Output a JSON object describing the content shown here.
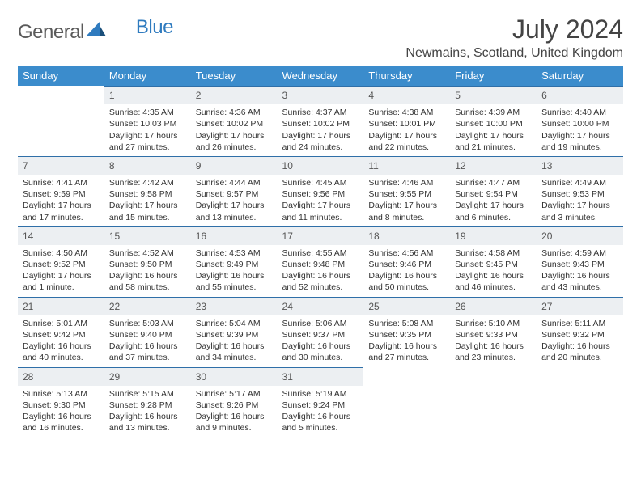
{
  "logo": {
    "part1": "General",
    "part2": "Blue"
  },
  "title": "July 2024",
  "subtitle": "Newmains, Scotland, United Kingdom",
  "colors": {
    "header_bg": "#3b8ccc",
    "header_text": "#ffffff",
    "daynum_bg": "#eceff2",
    "daynum_border": "#2f6fa8",
    "body_text": "#333333",
    "logo_gray": "#5a5a5a",
    "logo_blue": "#2f7bbf"
  },
  "weekdays": [
    "Sunday",
    "Monday",
    "Tuesday",
    "Wednesday",
    "Thursday",
    "Friday",
    "Saturday"
  ],
  "weeks": [
    [
      {
        "n": "",
        "lines": [],
        "empty": true
      },
      {
        "n": "1",
        "lines": [
          "Sunrise: 4:35 AM",
          "Sunset: 10:03 PM",
          "Daylight: 17 hours",
          "and 27 minutes."
        ]
      },
      {
        "n": "2",
        "lines": [
          "Sunrise: 4:36 AM",
          "Sunset: 10:02 PM",
          "Daylight: 17 hours",
          "and 26 minutes."
        ]
      },
      {
        "n": "3",
        "lines": [
          "Sunrise: 4:37 AM",
          "Sunset: 10:02 PM",
          "Daylight: 17 hours",
          "and 24 minutes."
        ]
      },
      {
        "n": "4",
        "lines": [
          "Sunrise: 4:38 AM",
          "Sunset: 10:01 PM",
          "Daylight: 17 hours",
          "and 22 minutes."
        ]
      },
      {
        "n": "5",
        "lines": [
          "Sunrise: 4:39 AM",
          "Sunset: 10:00 PM",
          "Daylight: 17 hours",
          "and 21 minutes."
        ]
      },
      {
        "n": "6",
        "lines": [
          "Sunrise: 4:40 AM",
          "Sunset: 10:00 PM",
          "Daylight: 17 hours",
          "and 19 minutes."
        ]
      }
    ],
    [
      {
        "n": "7",
        "lines": [
          "Sunrise: 4:41 AM",
          "Sunset: 9:59 PM",
          "Daylight: 17 hours",
          "and 17 minutes."
        ]
      },
      {
        "n": "8",
        "lines": [
          "Sunrise: 4:42 AM",
          "Sunset: 9:58 PM",
          "Daylight: 17 hours",
          "and 15 minutes."
        ]
      },
      {
        "n": "9",
        "lines": [
          "Sunrise: 4:44 AM",
          "Sunset: 9:57 PM",
          "Daylight: 17 hours",
          "and 13 minutes."
        ]
      },
      {
        "n": "10",
        "lines": [
          "Sunrise: 4:45 AM",
          "Sunset: 9:56 PM",
          "Daylight: 17 hours",
          "and 11 minutes."
        ]
      },
      {
        "n": "11",
        "lines": [
          "Sunrise: 4:46 AM",
          "Sunset: 9:55 PM",
          "Daylight: 17 hours",
          "and 8 minutes."
        ]
      },
      {
        "n": "12",
        "lines": [
          "Sunrise: 4:47 AM",
          "Sunset: 9:54 PM",
          "Daylight: 17 hours",
          "and 6 minutes."
        ]
      },
      {
        "n": "13",
        "lines": [
          "Sunrise: 4:49 AM",
          "Sunset: 9:53 PM",
          "Daylight: 17 hours",
          "and 3 minutes."
        ]
      }
    ],
    [
      {
        "n": "14",
        "lines": [
          "Sunrise: 4:50 AM",
          "Sunset: 9:52 PM",
          "Daylight: 17 hours",
          "and 1 minute."
        ]
      },
      {
        "n": "15",
        "lines": [
          "Sunrise: 4:52 AM",
          "Sunset: 9:50 PM",
          "Daylight: 16 hours",
          "and 58 minutes."
        ]
      },
      {
        "n": "16",
        "lines": [
          "Sunrise: 4:53 AM",
          "Sunset: 9:49 PM",
          "Daylight: 16 hours",
          "and 55 minutes."
        ]
      },
      {
        "n": "17",
        "lines": [
          "Sunrise: 4:55 AM",
          "Sunset: 9:48 PM",
          "Daylight: 16 hours",
          "and 52 minutes."
        ]
      },
      {
        "n": "18",
        "lines": [
          "Sunrise: 4:56 AM",
          "Sunset: 9:46 PM",
          "Daylight: 16 hours",
          "and 50 minutes."
        ]
      },
      {
        "n": "19",
        "lines": [
          "Sunrise: 4:58 AM",
          "Sunset: 9:45 PM",
          "Daylight: 16 hours",
          "and 46 minutes."
        ]
      },
      {
        "n": "20",
        "lines": [
          "Sunrise: 4:59 AM",
          "Sunset: 9:43 PM",
          "Daylight: 16 hours",
          "and 43 minutes."
        ]
      }
    ],
    [
      {
        "n": "21",
        "lines": [
          "Sunrise: 5:01 AM",
          "Sunset: 9:42 PM",
          "Daylight: 16 hours",
          "and 40 minutes."
        ]
      },
      {
        "n": "22",
        "lines": [
          "Sunrise: 5:03 AM",
          "Sunset: 9:40 PM",
          "Daylight: 16 hours",
          "and 37 minutes."
        ]
      },
      {
        "n": "23",
        "lines": [
          "Sunrise: 5:04 AM",
          "Sunset: 9:39 PM",
          "Daylight: 16 hours",
          "and 34 minutes."
        ]
      },
      {
        "n": "24",
        "lines": [
          "Sunrise: 5:06 AM",
          "Sunset: 9:37 PM",
          "Daylight: 16 hours",
          "and 30 minutes."
        ]
      },
      {
        "n": "25",
        "lines": [
          "Sunrise: 5:08 AM",
          "Sunset: 9:35 PM",
          "Daylight: 16 hours",
          "and 27 minutes."
        ]
      },
      {
        "n": "26",
        "lines": [
          "Sunrise: 5:10 AM",
          "Sunset: 9:33 PM",
          "Daylight: 16 hours",
          "and 23 minutes."
        ]
      },
      {
        "n": "27",
        "lines": [
          "Sunrise: 5:11 AM",
          "Sunset: 9:32 PM",
          "Daylight: 16 hours",
          "and 20 minutes."
        ]
      }
    ],
    [
      {
        "n": "28",
        "lines": [
          "Sunrise: 5:13 AM",
          "Sunset: 9:30 PM",
          "Daylight: 16 hours",
          "and 16 minutes."
        ]
      },
      {
        "n": "29",
        "lines": [
          "Sunrise: 5:15 AM",
          "Sunset: 9:28 PM",
          "Daylight: 16 hours",
          "and 13 minutes."
        ]
      },
      {
        "n": "30",
        "lines": [
          "Sunrise: 5:17 AM",
          "Sunset: 9:26 PM",
          "Daylight: 16 hours",
          "and 9 minutes."
        ]
      },
      {
        "n": "31",
        "lines": [
          "Sunrise: 5:19 AM",
          "Sunset: 9:24 PM",
          "Daylight: 16 hours",
          "and 5 minutes."
        ]
      },
      {
        "n": "",
        "lines": [],
        "empty": true
      },
      {
        "n": "",
        "lines": [],
        "empty": true
      },
      {
        "n": "",
        "lines": [],
        "empty": true
      }
    ]
  ]
}
